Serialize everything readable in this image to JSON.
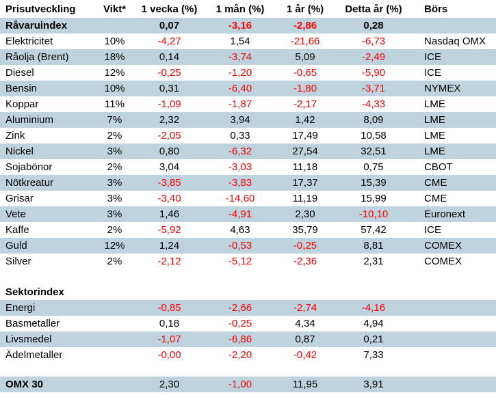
{
  "colors": {
    "band_blue": "#BED3DE",
    "negative_red": "#FF0000",
    "text_black": "#000000",
    "background": "#FFFFFF"
  },
  "table": {
    "headers": [
      "Prisutveckling",
      "Vikt*",
      "1 vecka (%)",
      "1 mån (%)",
      "1 år (%)",
      "Detta år (%)",
      "Börs"
    ],
    "rows": [
      {
        "label": "Råvaruindex",
        "vikt": "",
        "w1": "0,07",
        "m1": "-3,16",
        "y1": "-2,86",
        "ytd": "0,28",
        "bors": "",
        "band": true,
        "bold": true,
        "boldValues": true
      },
      {
        "label": "Elektricitet",
        "vikt": "10%",
        "w1": "-4,27",
        "m1": "1,54",
        "y1": "-21,66",
        "ytd": "-6,73",
        "bors": "Nasdaq OMX",
        "band": false,
        "bold": false,
        "boldValues": false
      },
      {
        "label": "Råolja (Brent)",
        "vikt": "18%",
        "w1": "0,14",
        "m1": "-3,74",
        "y1": "5,09",
        "ytd": "-2,49",
        "bors": "ICE",
        "band": true,
        "bold": false,
        "boldValues": false
      },
      {
        "label": "Diesel",
        "vikt": "12%",
        "w1": "-0,25",
        "m1": "-1,20",
        "y1": "-0,65",
        "ytd": "-5,90",
        "bors": "ICE",
        "band": false,
        "bold": false,
        "boldValues": false
      },
      {
        "label": "Bensin",
        "vikt": "10%",
        "w1": "0,31",
        "m1": "-6,40",
        "y1": "-1,80",
        "ytd": "-3,71",
        "bors": "NYMEX",
        "band": true,
        "bold": false,
        "boldValues": false
      },
      {
        "label": "Koppar",
        "vikt": "11%",
        "w1": "-1,09",
        "m1": "-1,87",
        "y1": "-2,17",
        "ytd": "-4,33",
        "bors": "LME",
        "band": false,
        "bold": false,
        "boldValues": false
      },
      {
        "label": "Aluminium",
        "vikt": "7%",
        "w1": "2,32",
        "m1": "3,94",
        "y1": "1,42",
        "ytd": "8,09",
        "bors": "LME",
        "band": true,
        "bold": false,
        "boldValues": false
      },
      {
        "label": "Zink",
        "vikt": "2%",
        "w1": "-2,05",
        "m1": "0,33",
        "y1": "17,49",
        "ytd": "10,58",
        "bors": "LME",
        "band": false,
        "bold": false,
        "boldValues": false
      },
      {
        "label": "Nickel",
        "vikt": "3%",
        "w1": "0,80",
        "m1": "-6,32",
        "y1": "27,54",
        "ytd": "32,51",
        "bors": "LME",
        "band": true,
        "bold": false,
        "boldValues": false
      },
      {
        "label": "Sojabönor",
        "vikt": "2%",
        "w1": "3,04",
        "m1": "-3,03",
        "y1": "11,18",
        "ytd": "0,75",
        "bors": "CBOT",
        "band": false,
        "bold": false,
        "boldValues": false
      },
      {
        "label": "Nötkreatur",
        "vikt": "3%",
        "w1": "-3,85",
        "m1": "-3,83",
        "y1": "17,37",
        "ytd": "15,39",
        "bors": "CME",
        "band": true,
        "bold": false,
        "boldValues": false
      },
      {
        "label": "Grisar",
        "vikt": "3%",
        "w1": "-3,40",
        "m1": "-14,60",
        "y1": "11,19",
        "ytd": "15,99",
        "bors": "CME",
        "band": false,
        "bold": false,
        "boldValues": false
      },
      {
        "label": "Vete",
        "vikt": "3%",
        "w1": "1,46",
        "m1": "-4,91",
        "y1": "2,30",
        "ytd": "-10,10",
        "bors": "Euronext",
        "band": true,
        "bold": false,
        "boldValues": false
      },
      {
        "label": "Kaffe",
        "vikt": "2%",
        "w1": "-5,92",
        "m1": "4,63",
        "y1": "35,79",
        "ytd": "57,42",
        "bors": "ICE",
        "band": false,
        "bold": false,
        "boldValues": false
      },
      {
        "label": "Guld",
        "vikt": "12%",
        "w1": "1,24",
        "m1": "-0,53",
        "y1": "-0,25",
        "ytd": "8,81",
        "bors": "COMEX",
        "band": true,
        "bold": false,
        "boldValues": false
      },
      {
        "label": "Silver",
        "vikt": "2%",
        "w1": "-2,12",
        "m1": "-5,12",
        "y1": "-2,36",
        "ytd": "2,31",
        "bors": "COMEX",
        "band": false,
        "bold": false,
        "boldValues": false
      },
      {
        "spacer": 22
      },
      {
        "label": "Sektorindex",
        "vikt": "",
        "w1": "",
        "m1": "",
        "y1": "",
        "ytd": "",
        "bors": "",
        "band": false,
        "bold": true,
        "boldValues": false
      },
      {
        "label": "Energi",
        "vikt": "",
        "w1": "-0,85",
        "m1": "-2,66",
        "y1": "-2,74",
        "ytd": "-4,16",
        "bors": "",
        "band": true,
        "bold": false,
        "boldValues": false
      },
      {
        "label": "Basmetaller",
        "vikt": "",
        "w1": "0,18",
        "m1": "-0,25",
        "y1": "4,34",
        "ytd": "4,94",
        "bors": "",
        "band": false,
        "bold": false,
        "boldValues": false
      },
      {
        "label": "Livsmedel",
        "vikt": "",
        "w1": "-1,07",
        "m1": "-6,86",
        "y1": "0,87",
        "ytd": "0,21",
        "bors": "",
        "band": true,
        "bold": false,
        "boldValues": false
      },
      {
        "label": "Ädelmetaller",
        "vikt": "",
        "w1": "-0,00",
        "m1": "-2,20",
        "y1": "-0,42",
        "ytd": "7,33",
        "bors": "",
        "band": false,
        "bold": false,
        "boldValues": false
      },
      {
        "spacer": 20
      },
      {
        "label": "OMX 30",
        "vikt": "",
        "w1": "2,30",
        "m1": "-1,00",
        "y1": "11,95",
        "ytd": "3,91",
        "bors": "",
        "band": true,
        "bold": true,
        "boldValues": false
      }
    ]
  }
}
